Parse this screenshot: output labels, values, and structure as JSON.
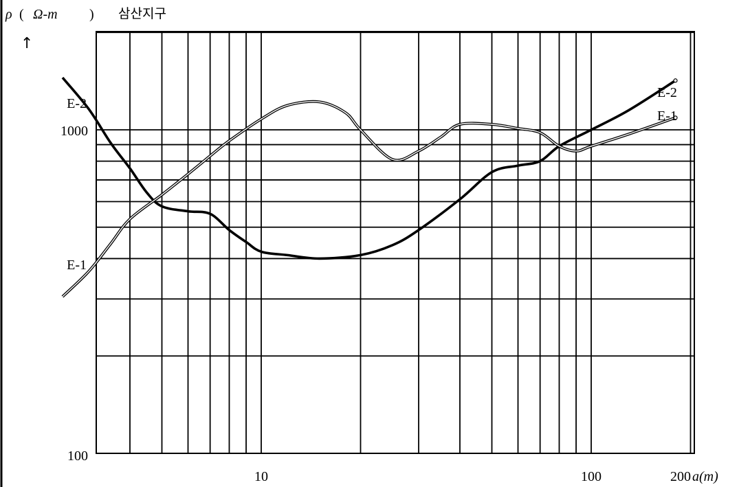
{
  "chart_data": {
    "type": "line",
    "title_symbol": "ρ",
    "title_paren_open": "(",
    "title_unit": "Ω-m",
    "title_paren_close": ")",
    "title_korean": "삼산지구",
    "y_arrow": "↑",
    "x_scale": "log",
    "y_scale": "log",
    "xlim": [
      2.5,
      200
    ],
    "ylim": [
      100,
      3000
    ],
    "x_ticks": [
      {
        "value": 10,
        "label": "10"
      },
      {
        "value": 100,
        "label": "100"
      }
    ],
    "x_end_label_num": "200",
    "x_end_label_unit": "a(m)",
    "y_ticks": [
      {
        "value": 100,
        "label": "100"
      },
      {
        "value": 1000,
        "label": "1000"
      }
    ],
    "series": [
      {
        "name": "E-2",
        "start_label": "E-2",
        "end_label": "E-2",
        "color": "#000000",
        "x": [
          2.5,
          3,
          3.5,
          4,
          4.5,
          5,
          6,
          7,
          8,
          9,
          10,
          12,
          15,
          20,
          25,
          30,
          40,
          50,
          60,
          70,
          80,
          100,
          130,
          180
        ],
        "y": [
          1450,
          1160,
          910,
          760,
          640,
          580,
          560,
          550,
          490,
          450,
          420,
          410,
          400,
          410,
          440,
          490,
          610,
          740,
          775,
          800,
          890,
          1000,
          1150,
          1420
        ]
      },
      {
        "name": "E-1",
        "start_label": "E-1",
        "end_label": "E-1",
        "color": "#000000",
        "x": [
          2.5,
          3,
          3.5,
          4,
          5,
          6,
          7,
          8,
          10,
          12,
          15,
          18,
          20,
          25,
          30,
          35,
          40,
          50,
          60,
          70,
          80,
          90,
          100,
          130,
          180
        ],
        "y": [
          305,
          365,
          445,
          530,
          630,
          730,
          830,
          925,
          1080,
          1190,
          1220,
          1130,
          1000,
          810,
          860,
          950,
          1040,
          1040,
          1010,
          980,
          890,
          860,
          890,
          970,
          1090
        ]
      }
    ]
  }
}
